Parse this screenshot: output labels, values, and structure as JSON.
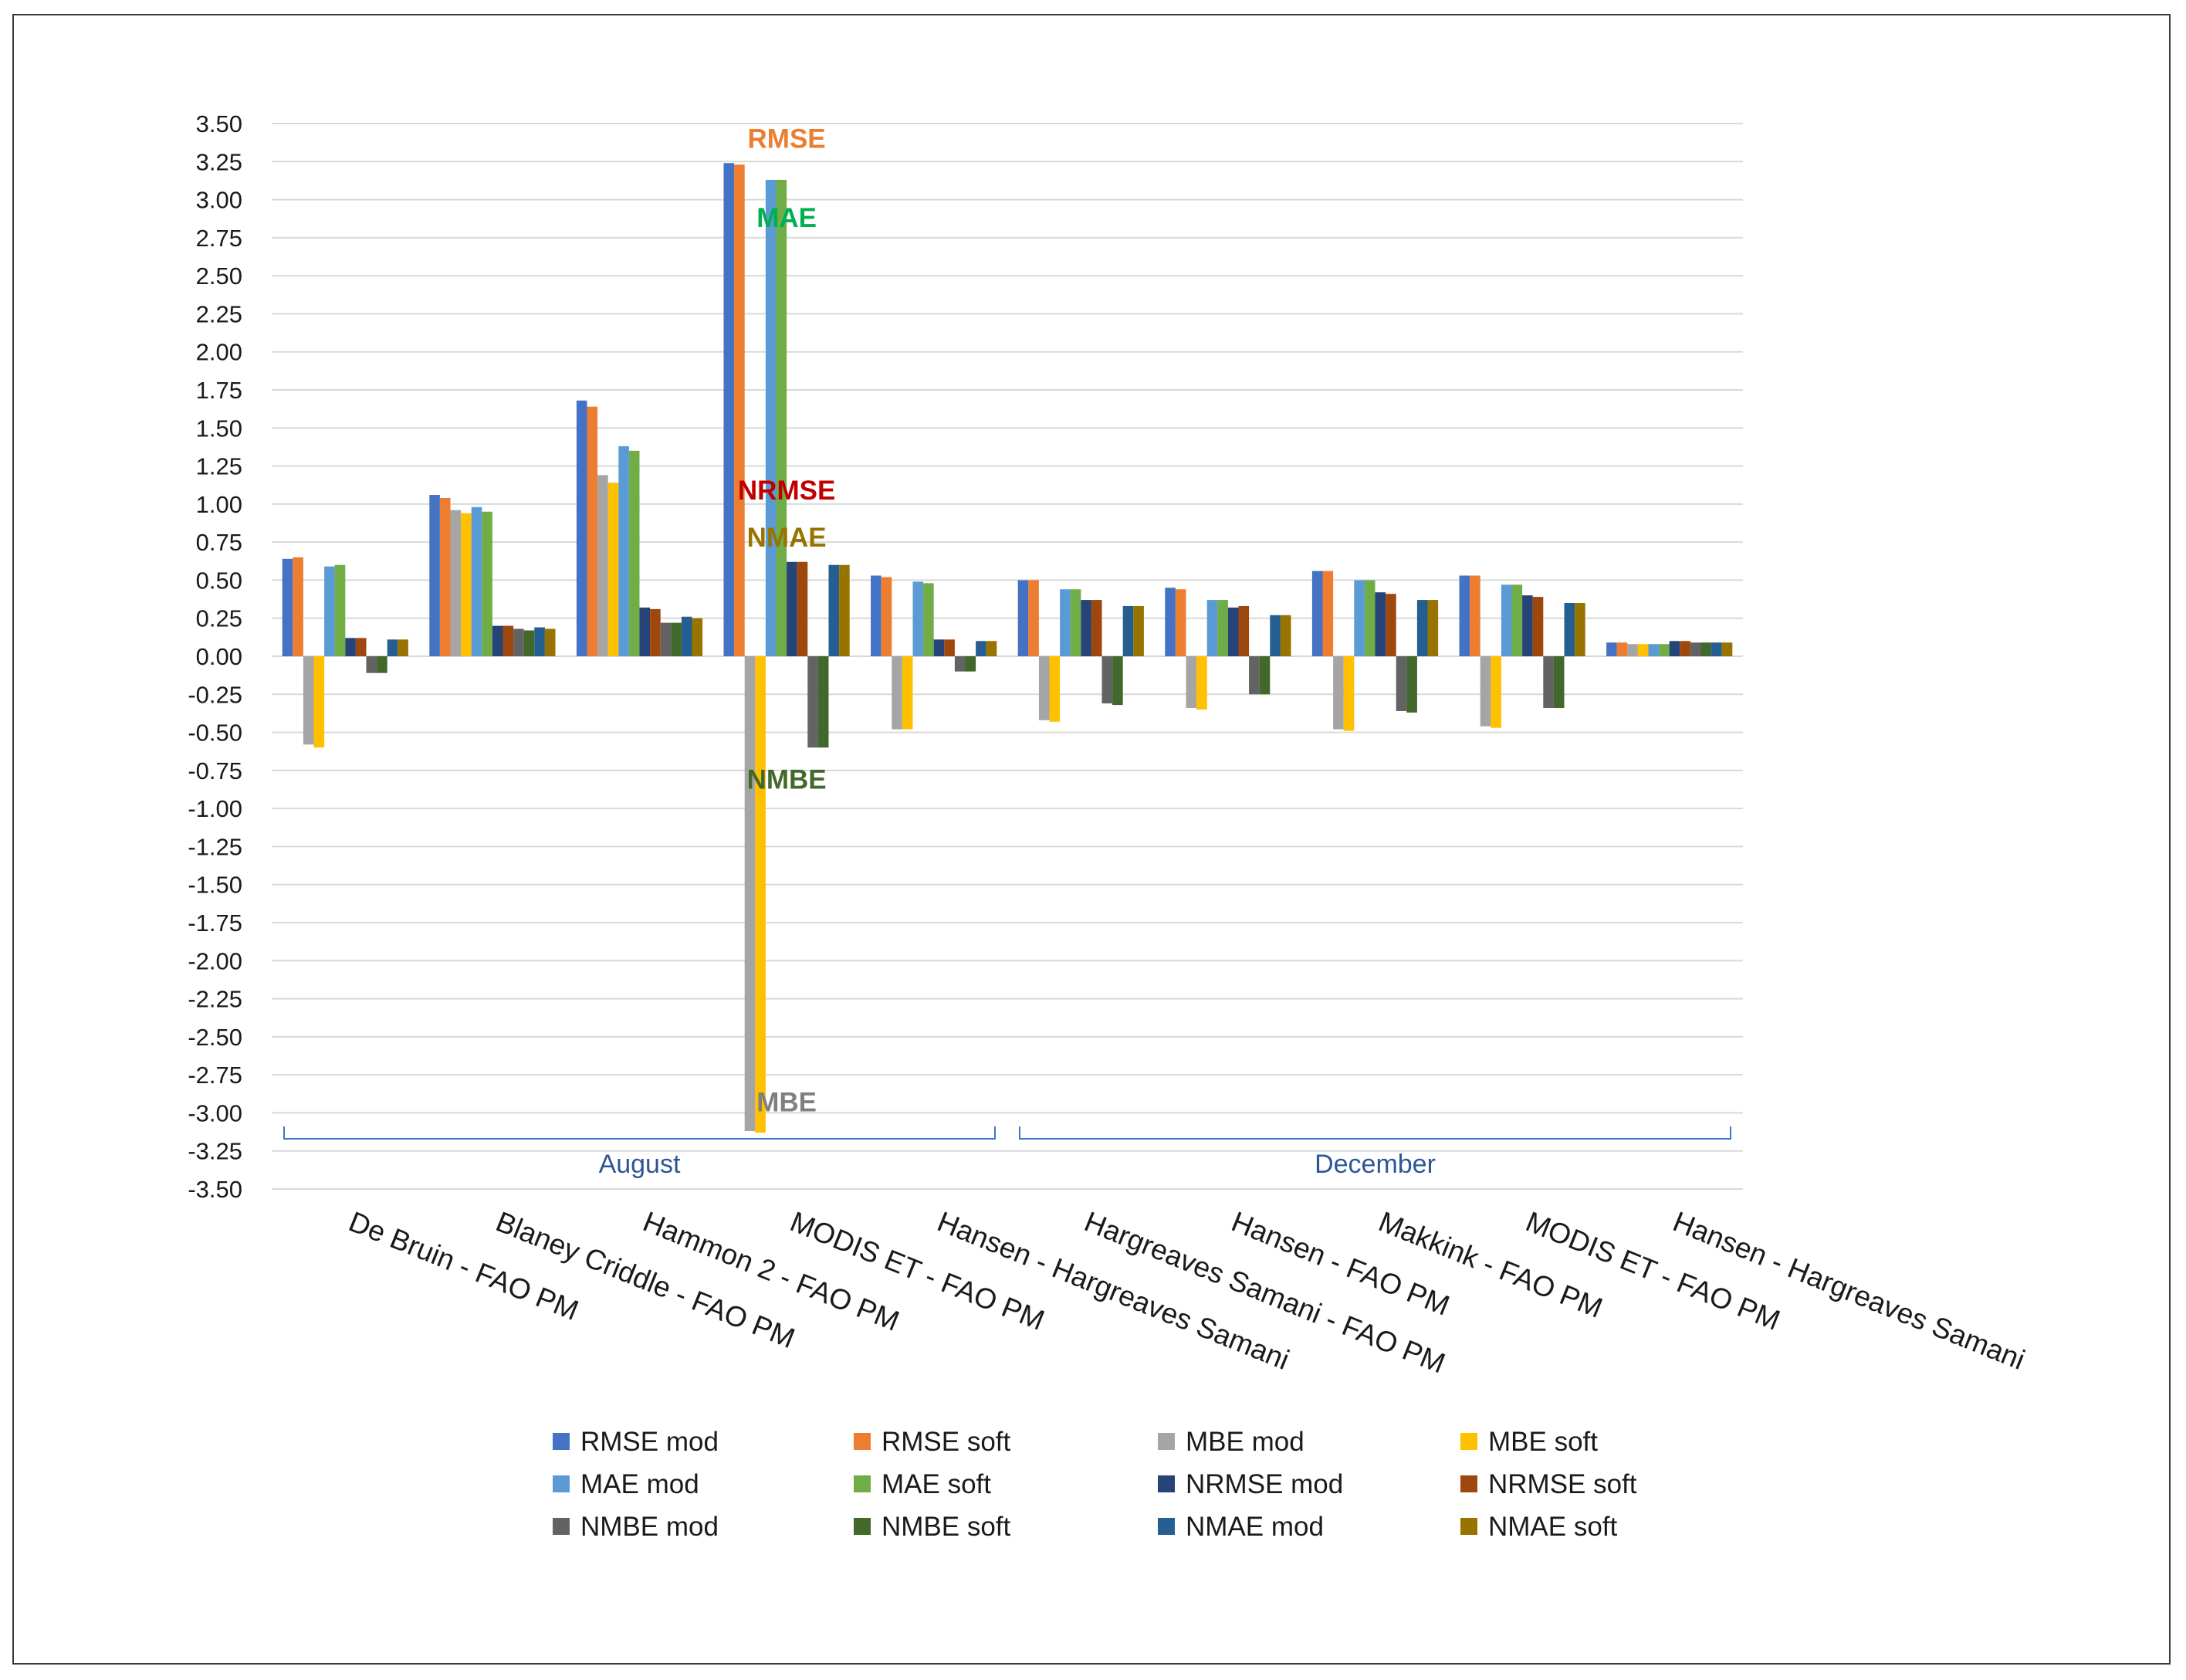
{
  "chart_data": {
    "type": "bar",
    "title": "",
    "xlabel": "",
    "ylabel": "",
    "ylim": [
      -3.5,
      3.5
    ],
    "yticks": [
      "3.50",
      "3.25",
      "3.00",
      "2.75",
      "2.50",
      "2.25",
      "2.00",
      "1.75",
      "1.50",
      "1.25",
      "1.00",
      "0.75",
      "0.50",
      "0.25",
      "0.00",
      "-0.25",
      "-0.50",
      "-0.75",
      "-1.00",
      "-1.25",
      "-1.50",
      "-1.75",
      "-2.00",
      "-2.25",
      "-2.50",
      "-2.75",
      "-3.00",
      "-3.25",
      "-3.50"
    ],
    "grid": true,
    "legend_position": "bottom",
    "categories": [
      "De Bruin - FAO PM",
      "Blaney Criddle - FAO PM",
      "Hammon 2 - FAO PM",
      "MODIS ET - FAO PM",
      "Hansen - Hargreaves Samani",
      "Hargreaves Samani - FAO PM",
      "Hansen - FAO PM",
      "Makkink - FAO PM",
      "MODIS ET - FAO PM",
      "Hansen - Hargreaves Samani"
    ],
    "groups": [
      {
        "label": "August",
        "from": 0,
        "to": 4
      },
      {
        "label": "December",
        "from": 5,
        "to": 9
      }
    ],
    "series": [
      {
        "name": "RMSE mod",
        "color": "#4472c4",
        "values": [
          0.64,
          1.06,
          1.68,
          3.24,
          0.53,
          0.5,
          0.45,
          0.56,
          0.53,
          0.09
        ]
      },
      {
        "name": "RMSE soft",
        "color": "#ed7d31",
        "values": [
          0.65,
          1.04,
          1.64,
          3.23,
          0.52,
          0.5,
          0.44,
          0.56,
          0.53,
          0.09
        ]
      },
      {
        "name": "MBE mod",
        "color": "#a5a5a5",
        "values": [
          -0.58,
          0.96,
          1.19,
          -3.12,
          -0.48,
          -0.42,
          -0.34,
          -0.48,
          -0.46,
          0.08
        ]
      },
      {
        "name": "MBE soft",
        "color": "#ffc000",
        "values": [
          -0.6,
          0.94,
          1.14,
          -3.13,
          -0.48,
          -0.43,
          -0.35,
          -0.49,
          -0.47,
          0.08
        ]
      },
      {
        "name": "MAE mod",
        "color": "#5b9bd5",
        "values": [
          0.59,
          0.98,
          1.38,
          3.13,
          0.49,
          0.44,
          0.37,
          0.5,
          0.47,
          0.08
        ]
      },
      {
        "name": "MAE soft",
        "color": "#70ad47",
        "values": [
          0.6,
          0.95,
          1.35,
          3.13,
          0.48,
          0.44,
          0.37,
          0.5,
          0.47,
          0.08
        ]
      },
      {
        "name": "NRMSE mod",
        "color": "#264478",
        "values": [
          0.12,
          0.2,
          0.32,
          0.62,
          0.11,
          0.37,
          0.32,
          0.42,
          0.4,
          0.1
        ]
      },
      {
        "name": "NRMSE soft",
        "color": "#9e480e",
        "values": [
          0.12,
          0.2,
          0.31,
          0.62,
          0.11,
          0.37,
          0.33,
          0.41,
          0.39,
          0.1
        ]
      },
      {
        "name": "NMBE mod",
        "color": "#636363",
        "values": [
          -0.11,
          0.18,
          0.22,
          -0.6,
          -0.1,
          -0.31,
          -0.25,
          -0.36,
          -0.34,
          0.09
        ]
      },
      {
        "name": "NMBE soft",
        "color": "#43682b",
        "values": [
          -0.11,
          0.17,
          0.22,
          -0.6,
          -0.1,
          -0.32,
          -0.25,
          -0.37,
          -0.34,
          0.09
        ]
      },
      {
        "name": "NMAE mod",
        "color": "#255e91",
        "values": [
          0.11,
          0.19,
          0.26,
          0.6,
          0.1,
          0.33,
          0.27,
          0.37,
          0.35,
          0.09
        ]
      },
      {
        "name": "NMAE soft",
        "color": "#997300",
        "values": [
          0.11,
          0.18,
          0.25,
          0.6,
          0.1,
          0.33,
          0.27,
          0.37,
          0.35,
          0.09
        ]
      }
    ],
    "annotations": [
      {
        "text": "RMSE",
        "color": "#ed7d31",
        "category": 3,
        "value": 3.4
      },
      {
        "text": "MAE",
        "color": "#00b050",
        "category": 3,
        "value": 2.88
      },
      {
        "text": "NRMSE",
        "color": "#c00000",
        "category": 3,
        "value": 1.09
      },
      {
        "text": "NMAE",
        "color": "#997300",
        "category": 3,
        "value": 0.78
      },
      {
        "text": "NMBE",
        "color": "#43682b",
        "category": 3,
        "value": -0.81
      },
      {
        "text": "MBE",
        "color": "#808080",
        "category": 3,
        "value": -2.93
      }
    ]
  }
}
